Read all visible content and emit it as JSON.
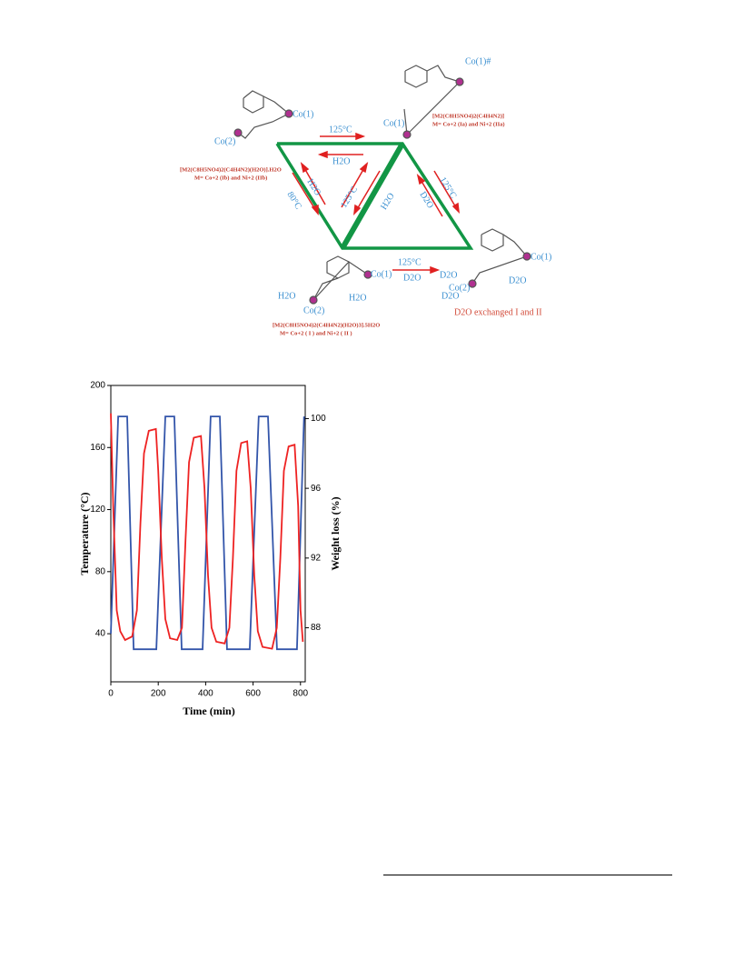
{
  "diagram": {
    "top_left_co1": "Co(1)",
    "top_left_co2": "Co(2)",
    "top_arrow_right": "125°C",
    "top_arrow_left": "H2O",
    "formula_b": "[M2(C8H5NO4)2(C4H4N2)(H2O)].H2O",
    "metal_b": "M= Co+2 (Ib) and Ni+2 (IIb)",
    "top_right_co1": "Co(1)",
    "top_right_co1_hash": "Co(1)#",
    "formula_a": "[M2(C8H5NO4)2(C4H4N2)]",
    "metal_a": "M= Co+2 (Ia) and Ni+2 (IIa)",
    "left_edge_water": "H2O",
    "left_edge_temp": "80°C",
    "inner_temp": "125°C",
    "inner_water": "H2O",
    "right_edge_d2o": "D2O",
    "right_edge_temp": "125°C",
    "bottom_arrow_temp": "125°C",
    "bottom_arrow_d2o": "D2O",
    "bottom_left_co1": "Co(1)",
    "bottom_left_water1": "H2O",
    "bottom_left_water2": "H2O",
    "bottom_left_co2": "Co(2)",
    "formula_i": "[M2(C8H5NO4)2(C4H4N2)(H2O)3].5H2O",
    "metal_i": "M= Co+2 ( I ) and Ni+2 ( II )",
    "bottom_right_co1": "Co(1)",
    "bottom_right_d2o1": "D2O",
    "bottom_right_co2": "Co(2)",
    "bottom_right_d2o2": "D2O",
    "bottom_right_d2o3": "D2O",
    "exchanged_caption": "D2O exchanged I and II"
  },
  "chart_data": {
    "type": "line",
    "x_label": "Time (min)",
    "y_label": "Temperature (°C)",
    "y2_label": "Weight loss (%)",
    "xlim": [
      0,
      820
    ],
    "xticks": [
      0,
      200,
      400,
      600,
      800
    ],
    "ylim": [
      9,
      200
    ],
    "yticks": [
      40,
      80,
      120,
      160,
      200
    ],
    "y2lim": [
      84.9,
      101.9
    ],
    "y2ticks": [
      88,
      92,
      96,
      100
    ],
    "series": [
      {
        "name": "Temperature",
        "color": "#3355aa",
        "axis": "y",
        "x": [
          0,
          31,
          69,
          96,
          192,
          230,
          268,
          299,
          387,
          421,
          460,
          490,
          586,
          624,
          663,
          701,
          785,
          815
        ],
        "values": [
          40,
          180,
          180,
          30,
          30,
          180,
          180,
          30,
          30,
          180,
          180,
          30,
          30,
          180,
          180,
          30,
          30,
          180
        ]
      },
      {
        "name": "Weight loss",
        "color": "#ee2222",
        "axis": "y2",
        "x": [
          0,
          10,
          25,
          40,
          60,
          90,
          110,
          125,
          140,
          160,
          190,
          200,
          215,
          230,
          250,
          280,
          300,
          315,
          330,
          350,
          380,
          395,
          410,
          425,
          445,
          480,
          500,
          515,
          530,
          550,
          575,
          590,
          605,
          620,
          640,
          680,
          700,
          715,
          730,
          750,
          775,
          790,
          800,
          810
        ],
        "values": [
          100.3,
          95,
          89,
          87.8,
          87.3,
          87.5,
          89,
          94,
          98,
          99.3,
          99.4,
          97,
          92,
          88.5,
          87.4,
          87.3,
          88,
          93,
          97.5,
          98.9,
          99,
          96,
          91,
          88,
          87.2,
          87.1,
          88,
          92,
          97,
          98.6,
          98.7,
          96,
          91,
          87.8,
          86.9,
          86.8,
          88,
          92,
          97,
          98.4,
          98.5,
          95,
          89,
          87.2
        ]
      }
    ]
  }
}
